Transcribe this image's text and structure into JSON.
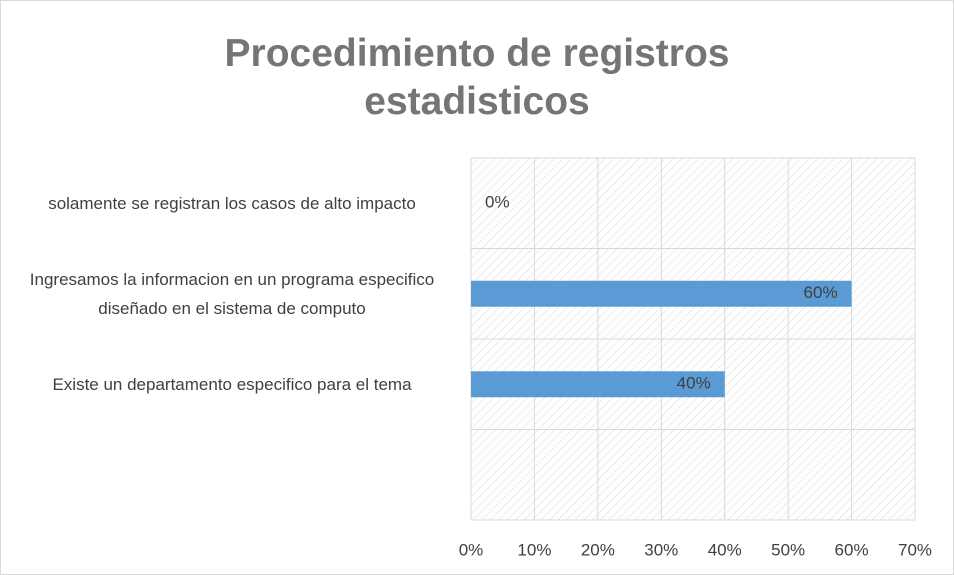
{
  "chart_data": {
    "type": "bar",
    "orientation": "horizontal",
    "title": "Procedimiento de registros estadisticos",
    "categories": [
      "solamente se registran los casos de alto impacto",
      "Ingresamos la informacion en un programa especifico diseñado en el sistema de computo",
      "Existe un departamento especifico para el tema",
      null
    ],
    "values": [
      0,
      60,
      40,
      null
    ],
    "value_labels": [
      "0%",
      "60%",
      "40%",
      null
    ],
    "color": "#5b9bd5",
    "xlim": [
      0,
      70
    ],
    "xticks": [
      {
        "value": 0,
        "label": "0%"
      },
      {
        "value": 10,
        "label": "10%"
      },
      {
        "value": 20,
        "label": "20%"
      },
      {
        "value": 30,
        "label": "30%"
      },
      {
        "value": 40,
        "label": "40%"
      },
      {
        "value": 50,
        "label": "50%"
      },
      {
        "value": 60,
        "label": "60%"
      },
      {
        "value": 70,
        "label": "70%"
      }
    ],
    "grid": true
  }
}
